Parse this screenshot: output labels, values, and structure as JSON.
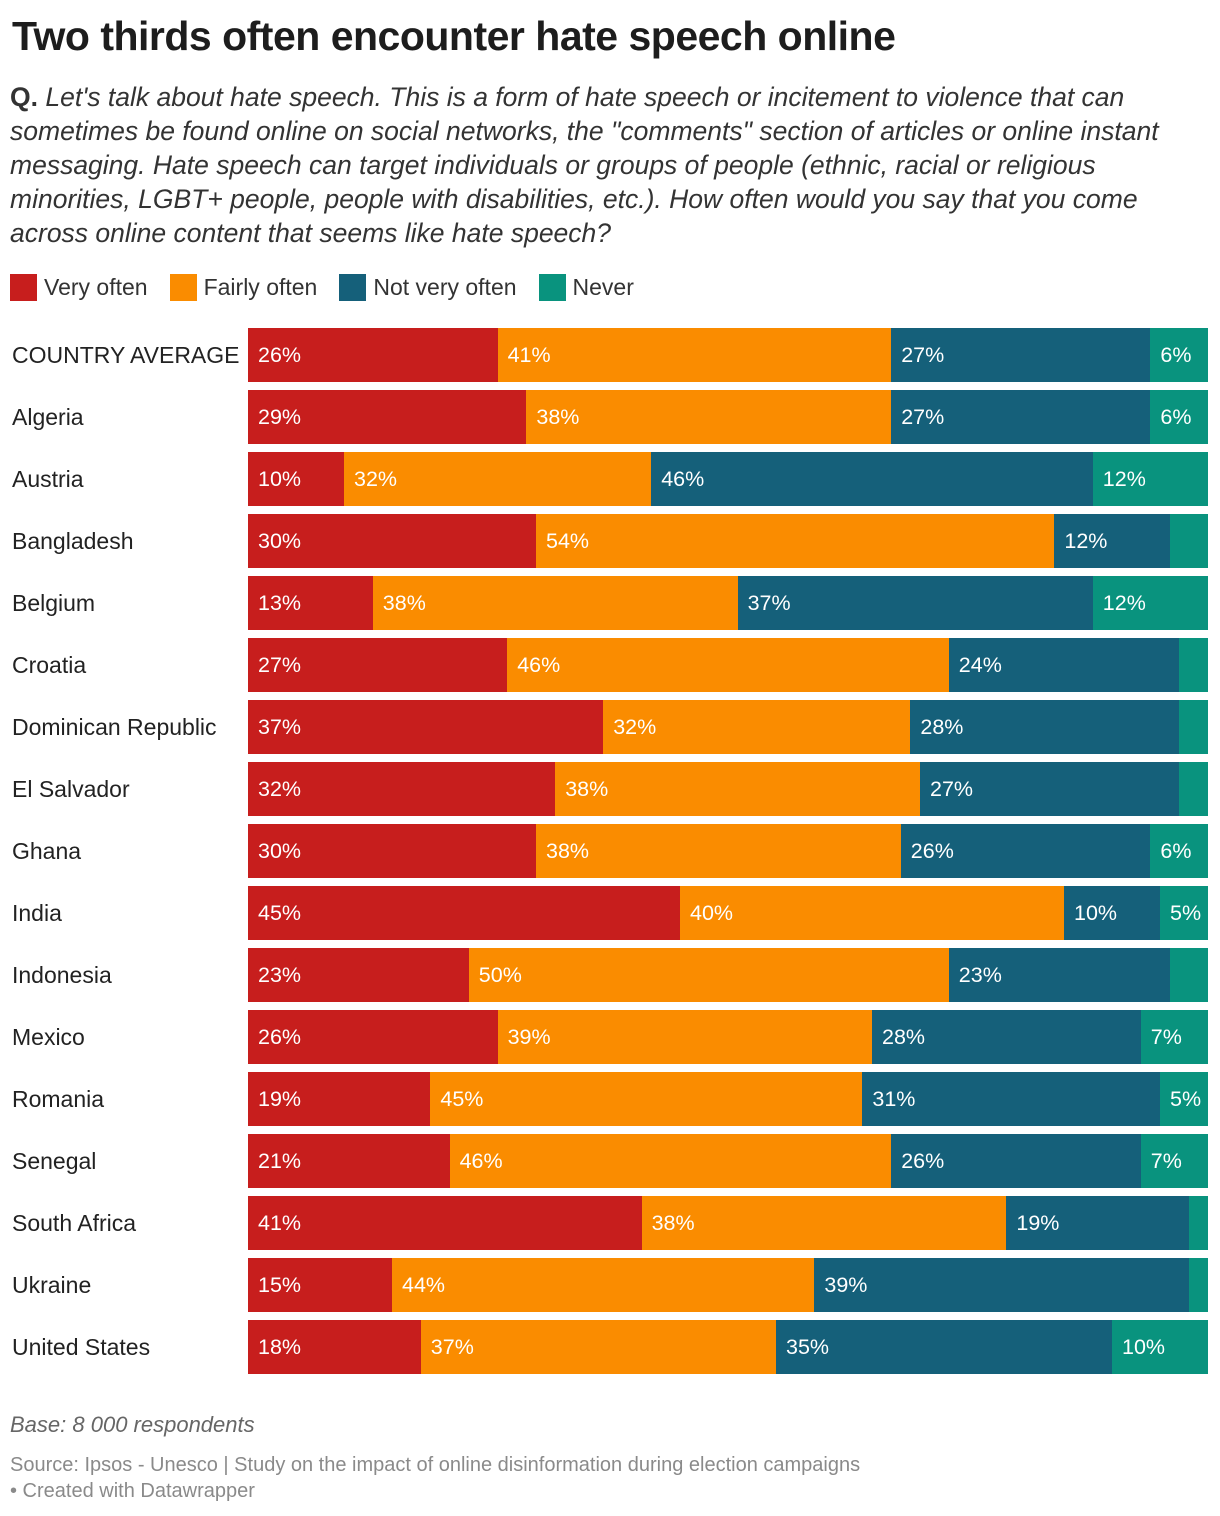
{
  "chart_data": {
    "type": "bar",
    "orientation": "horizontal",
    "stacked": true,
    "normalized": true,
    "title": "Two thirds often encounter hate speech online",
    "subtitle_prefix": "Q.",
    "subtitle": "Let's talk about hate speech. This is a form of hate speech or incitement to violence that can sometimes be found online on social networks, the \"comments\" section of articles or online instant messaging. Hate speech can target individuals or groups of people (ethnic, racial or religious minorities, LGBT+ people, people with disabilities, etc.). How often would you say that you come across online content that seems like hate speech?",
    "legend_position": "top-left",
    "grid": false,
    "categories": [
      "COUNTRY AVERAGE",
      "Algeria",
      "Austria",
      "Bangladesh",
      "Belgium",
      "Croatia",
      "Dominican Republic",
      "El Salvador",
      "Ghana",
      "India",
      "Indonesia",
      "Mexico",
      "Romania",
      "Senegal",
      "South Africa",
      "Ukraine",
      "United States"
    ],
    "series": [
      {
        "name": "Very often",
        "color": "#c71e1d",
        "values": [
          26,
          29,
          10,
          30,
          13,
          27,
          37,
          32,
          30,
          45,
          23,
          26,
          19,
          21,
          41,
          15,
          18
        ]
      },
      {
        "name": "Fairly often",
        "color": "#fa8c00",
        "values": [
          41,
          38,
          32,
          54,
          38,
          46,
          32,
          38,
          38,
          40,
          50,
          39,
          45,
          46,
          38,
          44,
          37
        ]
      },
      {
        "name": "Not very often",
        "color": "#15607a",
        "values": [
          27,
          27,
          46,
          12,
          37,
          24,
          28,
          27,
          26,
          10,
          23,
          28,
          31,
          26,
          19,
          39,
          35
        ]
      },
      {
        "name": "Never",
        "color": "#09937e",
        "values": [
          6,
          6,
          12,
          4,
          12,
          3,
          3,
          3,
          6,
          5,
          4,
          7,
          5,
          7,
          2,
          2,
          10
        ]
      }
    ],
    "notes": "Base: 8 000 respondents",
    "source": "Source: Ipsos - Unesco | Study on the impact of online disinformation during election campaigns",
    "credit": "• Created with Datawrapper"
  }
}
